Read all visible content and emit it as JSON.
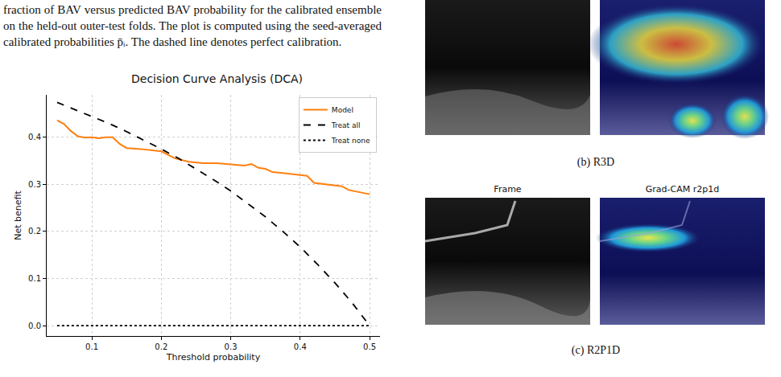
{
  "caption": "fraction of BAV versus predicted BAV probability for the calibrated ensemble on the held-out outer-test folds. The plot is computed using the seed-averaged calibrated probabilities p̄ᵢ. The dashed line denotes perfect calibration.",
  "chart_data": {
    "type": "line",
    "title": "Decision Curve Analysis (DCA)",
    "x_label": "Threshold probability",
    "y_label": "Net benefit",
    "xlim": [
      0.035,
      0.515
    ],
    "ylim": [
      -0.022,
      0.49
    ],
    "xticks": [
      0.1,
      0.2,
      0.3,
      0.4,
      0.5
    ],
    "yticks": [
      {
        "value": 0,
        "label": "0.0"
      },
      0.1,
      0.2,
      0.3,
      0.4
    ],
    "grid": true,
    "legend": "top-right",
    "series": [
      {
        "name": "Model",
        "color": "#ff7f0e",
        "line_style": "solid",
        "x": [
          0.05,
          0.06,
          0.07,
          0.08,
          0.09,
          0.1,
          0.11,
          0.12,
          0.13,
          0.14,
          0.15,
          0.17,
          0.2,
          0.21,
          0.22,
          0.24,
          0.26,
          0.28,
          0.3,
          0.32,
          0.33,
          0.34,
          0.35,
          0.36,
          0.38,
          0.4,
          0.41,
          0.42,
          0.44,
          0.46,
          0.47,
          0.5
        ],
        "values": [
          0.436,
          0.428,
          0.413,
          0.402,
          0.399,
          0.4,
          0.398,
          0.4,
          0.4,
          0.386,
          0.377,
          0.375,
          0.37,
          0.362,
          0.355,
          0.348,
          0.345,
          0.345,
          0.343,
          0.34,
          0.343,
          0.335,
          0.333,
          0.326,
          0.323,
          0.32,
          0.318,
          0.303,
          0.3,
          0.296,
          0.288,
          0.279
        ]
      },
      {
        "name": "Treat all",
        "color": "#000000",
        "line_style": "dash",
        "x": [
          0.05,
          0.075,
          0.1,
          0.125,
          0.15,
          0.175,
          0.2,
          0.225,
          0.25,
          0.275,
          0.3,
          0.325,
          0.35,
          0.375,
          0.4,
          0.425,
          0.45,
          0.475,
          0.5
        ],
        "values": [
          0.474,
          0.459,
          0.444,
          0.429,
          0.412,
          0.394,
          0.375,
          0.355,
          0.333,
          0.31,
          0.286,
          0.259,
          0.231,
          0.2,
          0.167,
          0.13,
          0.091,
          0.048,
          0
        ]
      },
      {
        "name": "Treat none",
        "color": "#000000",
        "line_style": "dot",
        "x": [
          0.05,
          0.5
        ],
        "values": [
          0,
          0
        ]
      }
    ]
  },
  "panels": [
    {
      "label": "(b) R3D"
    },
    {
      "label": "(c) R2P1D",
      "image_titles": [
        "Frame",
        "Grad-CAM r2p1d"
      ]
    }
  ]
}
